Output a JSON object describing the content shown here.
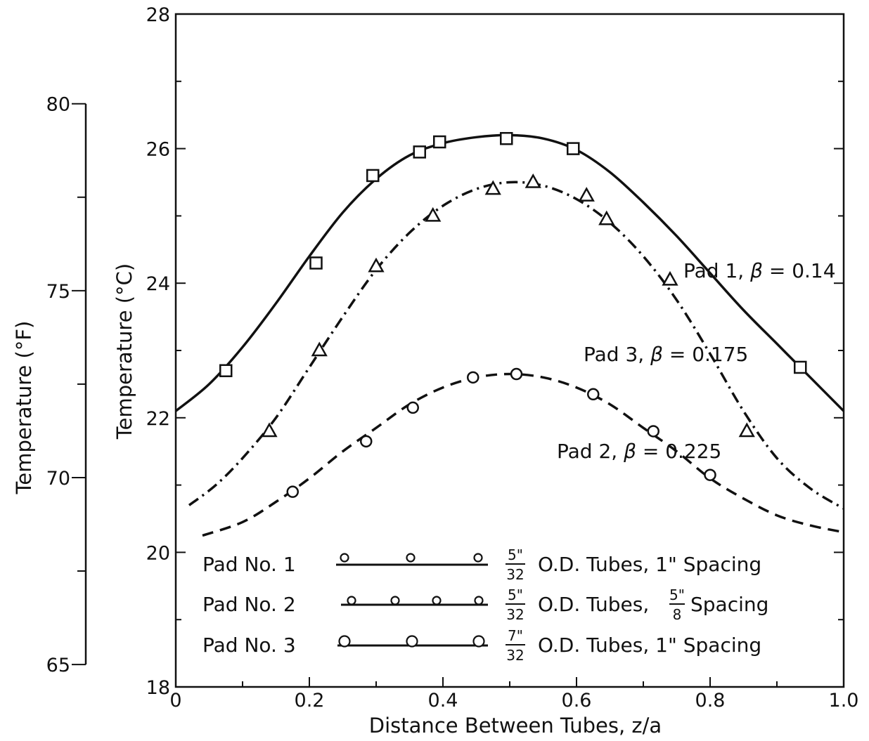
{
  "chart_data": {
    "type": "line",
    "xlabel": "Distance Between Tubes, z/a",
    "ylabel": "Temperature  (°C)",
    "ylabel_secondary": "Temperature  (°F)",
    "xlim": [
      0,
      1.0
    ],
    "ylim": [
      18,
      28
    ],
    "ylim_secondary_F": [
      64.4,
      82.4
    ],
    "x_ticks": [
      "0",
      "0.2",
      "0.4",
      "0.6",
      "0.8",
      "1.0"
    ],
    "y_ticks": [
      "18",
      "20",
      "22",
      "24",
      "26",
      "28"
    ],
    "y_ticks_secondary": [
      "65",
      "70",
      "75",
      "80"
    ],
    "grid": false,
    "legend_position": "bottom-center",
    "series": [
      {
        "label": "Pad 1, β = 0.14",
        "line_style": "solid",
        "marker": "square",
        "points": [
          {
            "x": 0.075,
            "y": 22.7
          },
          {
            "x": 0.21,
            "y": 24.3
          },
          {
            "x": 0.295,
            "y": 25.6
          },
          {
            "x": 0.365,
            "y": 25.95
          },
          {
            "x": 0.395,
            "y": 26.1
          },
          {
            "x": 0.495,
            "y": 26.15
          },
          {
            "x": 0.595,
            "y": 26.0
          },
          {
            "x": 0.935,
            "y": 22.75
          }
        ],
        "curve": [
          {
            "x": 0.0,
            "y": 22.1
          },
          {
            "x": 0.05,
            "y": 22.5
          },
          {
            "x": 0.1,
            "y": 23.05
          },
          {
            "x": 0.15,
            "y": 23.7
          },
          {
            "x": 0.2,
            "y": 24.4
          },
          {
            "x": 0.25,
            "y": 25.05
          },
          {
            "x": 0.3,
            "y": 25.55
          },
          {
            "x": 0.35,
            "y": 25.9
          },
          {
            "x": 0.4,
            "y": 26.08
          },
          {
            "x": 0.45,
            "y": 26.17
          },
          {
            "x": 0.5,
            "y": 26.2
          },
          {
            "x": 0.55,
            "y": 26.15
          },
          {
            "x": 0.6,
            "y": 25.98
          },
          {
            "x": 0.65,
            "y": 25.65
          },
          {
            "x": 0.7,
            "y": 25.2
          },
          {
            "x": 0.75,
            "y": 24.7
          },
          {
            "x": 0.8,
            "y": 24.15
          },
          {
            "x": 0.85,
            "y": 23.6
          },
          {
            "x": 0.9,
            "y": 23.1
          },
          {
            "x": 0.95,
            "y": 22.6
          },
          {
            "x": 1.0,
            "y": 22.1
          }
        ]
      },
      {
        "label": "Pad 3, β = 0.175",
        "line_style": "dash-dot",
        "marker": "triangle",
        "points": [
          {
            "x": 0.14,
            "y": 21.8
          },
          {
            "x": 0.215,
            "y": 23.0
          },
          {
            "x": 0.3,
            "y": 24.25
          },
          {
            "x": 0.385,
            "y": 25.0
          },
          {
            "x": 0.475,
            "y": 25.4
          },
          {
            "x": 0.535,
            "y": 25.5
          },
          {
            "x": 0.615,
            "y": 25.3
          },
          {
            "x": 0.645,
            "y": 24.95
          },
          {
            "x": 0.74,
            "y": 24.05
          },
          {
            "x": 0.855,
            "y": 21.8
          }
        ],
        "curve": [
          {
            "x": 0.02,
            "y": 20.7
          },
          {
            "x": 0.06,
            "y": 21.0
          },
          {
            "x": 0.1,
            "y": 21.4
          },
          {
            "x": 0.15,
            "y": 22.0
          },
          {
            "x": 0.2,
            "y": 22.75
          },
          {
            "x": 0.25,
            "y": 23.5
          },
          {
            "x": 0.3,
            "y": 24.2
          },
          {
            "x": 0.35,
            "y": 24.75
          },
          {
            "x": 0.4,
            "y": 25.15
          },
          {
            "x": 0.45,
            "y": 25.4
          },
          {
            "x": 0.5,
            "y": 25.5
          },
          {
            "x": 0.55,
            "y": 25.45
          },
          {
            "x": 0.6,
            "y": 25.25
          },
          {
            "x": 0.65,
            "y": 24.9
          },
          {
            "x": 0.7,
            "y": 24.4
          },
          {
            "x": 0.75,
            "y": 23.75
          },
          {
            "x": 0.8,
            "y": 22.95
          },
          {
            "x": 0.85,
            "y": 22.1
          },
          {
            "x": 0.9,
            "y": 21.4
          },
          {
            "x": 0.95,
            "y": 20.95
          },
          {
            "x": 1.0,
            "y": 20.65
          }
        ]
      },
      {
        "label": "Pad 2, β = 0.225",
        "line_style": "dashed",
        "marker": "circle",
        "points": [
          {
            "x": 0.175,
            "y": 20.9
          },
          {
            "x": 0.285,
            "y": 21.65
          },
          {
            "x": 0.355,
            "y": 22.15
          },
          {
            "x": 0.445,
            "y": 22.6
          },
          {
            "x": 0.51,
            "y": 22.65
          },
          {
            "x": 0.625,
            "y": 22.35
          },
          {
            "x": 0.715,
            "y": 21.8
          },
          {
            "x": 0.8,
            "y": 21.15
          }
        ],
        "curve": [
          {
            "x": 0.04,
            "y": 20.25
          },
          {
            "x": 0.1,
            "y": 20.45
          },
          {
            "x": 0.15,
            "y": 20.75
          },
          {
            "x": 0.2,
            "y": 21.1
          },
          {
            "x": 0.25,
            "y": 21.5
          },
          {
            "x": 0.3,
            "y": 21.85
          },
          {
            "x": 0.35,
            "y": 22.2
          },
          {
            "x": 0.4,
            "y": 22.45
          },
          {
            "x": 0.45,
            "y": 22.6
          },
          {
            "x": 0.5,
            "y": 22.65
          },
          {
            "x": 0.55,
            "y": 22.6
          },
          {
            "x": 0.6,
            "y": 22.45
          },
          {
            "x": 0.65,
            "y": 22.2
          },
          {
            "x": 0.7,
            "y": 21.85
          },
          {
            "x": 0.75,
            "y": 21.5
          },
          {
            "x": 0.8,
            "y": 21.1
          },
          {
            "x": 0.85,
            "y": 20.8
          },
          {
            "x": 0.9,
            "y": 20.55
          },
          {
            "x": 0.95,
            "y": 20.4
          },
          {
            "x": 1.0,
            "y": 20.3
          }
        ]
      }
    ],
    "annotations": [
      {
        "series_index": 0,
        "text_a": "Pad 1, ",
        "beta": "β",
        "text_b": " = 0.14"
      },
      {
        "series_index": 1,
        "text_a": "Pad 3,  ",
        "beta": "β",
        "text_b": " = 0.175"
      },
      {
        "series_index": 2,
        "text_a": "Pad 2,  ",
        "beta": "β",
        "text_b": " = 0.225"
      }
    ],
    "legend": [
      {
        "name": "Pad No. 1",
        "frac_num": "5\"",
        "frac_den": "32",
        "desc": "O.D. Tubes, 1\"  Spacing",
        "spacing_frac": null
      },
      {
        "name": "Pad No. 2",
        "frac_num": "5\"",
        "frac_den": "32",
        "desc_a": "O.D. Tubes, ",
        "spacing_frac": {
          "num": "5\"",
          "den": "8"
        },
        "desc_b": " Spacing"
      },
      {
        "name": "Pad No. 3",
        "frac_num": "7\"",
        "frac_den": "32",
        "desc": "O.D.  Tubes, 1\" Spacing",
        "spacing_frac": null
      }
    ]
  }
}
